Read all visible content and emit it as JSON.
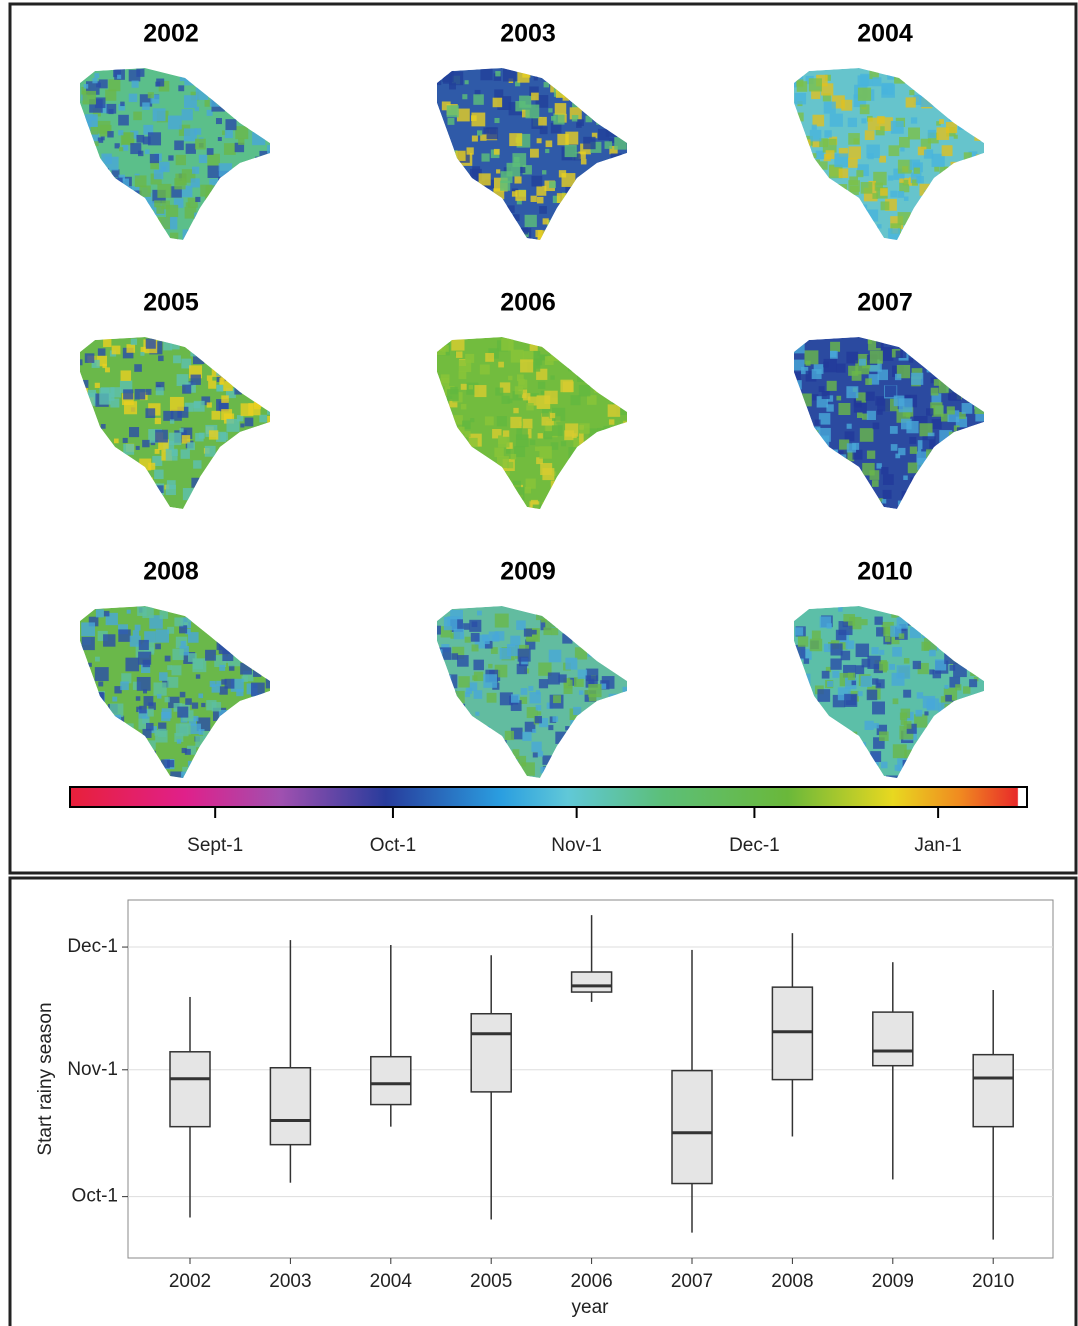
{
  "chart_data": [
    {
      "type": "map-grid",
      "years": [
        "2002",
        "2003",
        "2004",
        "2005",
        "2006",
        "2007",
        "2008",
        "2009",
        "2010"
      ],
      "colorbar": {
        "xlim": [
          219.5,
          381
        ],
        "xticks": [
          {
            "value": 244,
            "label": "Sept-1"
          },
          {
            "value": 274,
            "label": "Oct-1"
          },
          {
            "value": 305,
            "label": "Nov-1"
          },
          {
            "value": 335,
            "label": "Dec-1"
          },
          {
            "value": 366,
            "label": "Jan-1"
          }
        ]
      }
    },
    {
      "type": "box",
      "categories": [
        "2002",
        "2003",
        "2004",
        "2005",
        "2006",
        "2007",
        "2008",
        "2009",
        "2010"
      ],
      "xlabel": "year",
      "ylabel": "Start rainy season",
      "whisker_low": [
        268.9,
        277.4,
        291.1,
        268.4,
        321.6,
        265.2,
        288.7,
        278.2,
        263.5
      ],
      "q1": [
        291.1,
        286.7,
        296.5,
        299.6,
        324.0,
        277.2,
        302.6,
        306.0,
        291.1
      ],
      "median": [
        302.8,
        292.6,
        301.6,
        313.8,
        325.5,
        289.6,
        314.3,
        309.6,
        303.0
      ],
      "q3": [
        309.4,
        305.5,
        308.2,
        318.7,
        328.9,
        304.8,
        325.2,
        319.1,
        308.7
      ],
      "whisker_high": [
        322.8,
        336.7,
        335.5,
        333.0,
        342.8,
        334.3,
        338.4,
        331.3,
        324.5
      ],
      "color": "#e5e5e5",
      "ylim": [
        259,
        346.5
      ],
      "yticks": [
        {
          "value": 274,
          "label": "Oct-1"
        },
        {
          "value": 305,
          "label": "Nov-1"
        },
        {
          "value": 335,
          "label": "Dec-1"
        }
      ],
      "grid": true
    }
  ]
}
